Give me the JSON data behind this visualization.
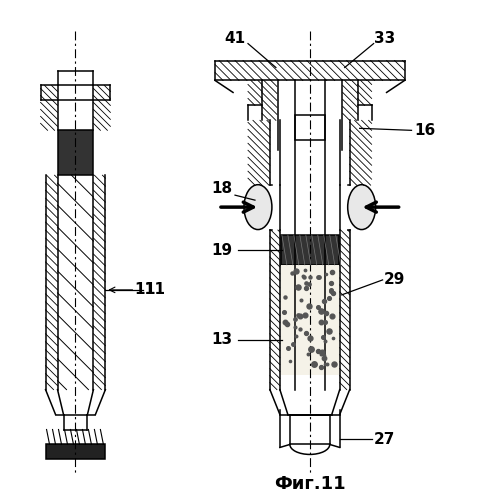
{
  "title": "Фиг.11",
  "background_color": "#ffffff",
  "line_color": "#000000",
  "fig_width": 4.85,
  "fig_height": 5.0,
  "dpi": 100
}
